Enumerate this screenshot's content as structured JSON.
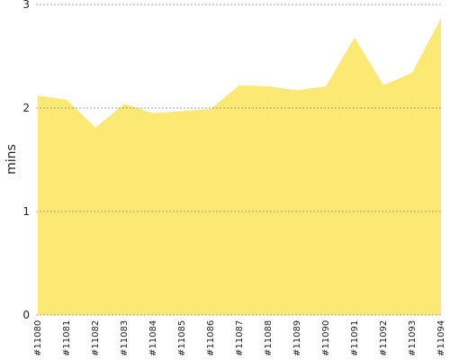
{
  "chart_data": {
    "type": "area",
    "y_label": "mins",
    "categories": [
      "#11080",
      "#11081",
      "#11082",
      "#11083",
      "#11084",
      "#11085",
      "#11086",
      "#11087",
      "#11088",
      "#11089",
      "#11090",
      "#11091",
      "#11092",
      "#11093",
      "#11094"
    ],
    "values": [
      2.12,
      2.08,
      1.81,
      2.04,
      1.95,
      1.97,
      1.99,
      2.22,
      2.21,
      2.17,
      2.21,
      2.68,
      2.22,
      2.34,
      2.87
    ],
    "color": "#fce974",
    "ylim": [
      0,
      3
    ],
    "yticks": [
      0,
      1,
      2,
      3
    ],
    "grid": true
  }
}
